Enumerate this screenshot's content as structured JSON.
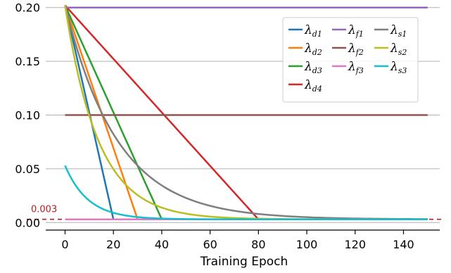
{
  "chart_data": {
    "type": "line",
    "xlabel": "Training Epoch",
    "ylabel": "",
    "xlim": [
      -8,
      155
    ],
    "ylim": [
      -0.007,
      0.207
    ],
    "x_ticks": [
      0,
      20,
      40,
      60,
      80,
      100,
      120,
      140
    ],
    "y_ticks": [
      0.0,
      0.05,
      0.1,
      0.15,
      0.2
    ],
    "y_tick_labels": [
      "0.00",
      "0.05",
      "0.10",
      "0.15",
      "0.20"
    ],
    "grid": "horizontal",
    "legend_position": "top-right",
    "reference_line": {
      "y": 0.003,
      "label": "0.003",
      "color": "#b22222",
      "style": "dashed"
    },
    "series": [
      {
        "name": "λd1",
        "symbol": "λ",
        "sub": "d1",
        "color": "#1f77b4",
        "kind": "linear",
        "y0": 0.202,
        "end_epoch": 20,
        "floor": 0.003
      },
      {
        "name": "λd2",
        "symbol": "λ",
        "sub": "d2",
        "color": "#ff7f0e",
        "kind": "linear",
        "y0": 0.202,
        "end_epoch": 30,
        "floor": 0.003
      },
      {
        "name": "λd3",
        "symbol": "λ",
        "sub": "d3",
        "color": "#2ca02c",
        "kind": "linear",
        "y0": 0.202,
        "end_epoch": 40,
        "floor": 0.003
      },
      {
        "name": "λd4",
        "symbol": "λ",
        "sub": "d4",
        "color": "#d62728",
        "kind": "linear",
        "y0": 0.202,
        "end_epoch": 80,
        "floor": 0.003
      },
      {
        "name": "λf1",
        "symbol": "λ",
        "sub": "f1",
        "color": "#9467bd",
        "kind": "constant",
        "value": 0.2
      },
      {
        "name": "λf2",
        "symbol": "λ",
        "sub": "f2",
        "color": "#8c564b",
        "kind": "constant",
        "value": 0.1
      },
      {
        "name": "λf3",
        "symbol": "λ",
        "sub": "f3",
        "color": "#e377c2",
        "kind": "constant",
        "value": 0.003
      },
      {
        "name": "λs1",
        "symbol": "λ",
        "sub": "s1",
        "color": "#7f7f7f",
        "kind": "exp",
        "y0": 0.202,
        "decay": 0.955,
        "floor": 0.003
      },
      {
        "name": "λs2",
        "symbol": "λ",
        "sub": "s2",
        "color": "#bcbd22",
        "kind": "exp",
        "y0": 0.202,
        "decay": 0.93,
        "floor": 0.003
      },
      {
        "name": "λs3",
        "symbol": "λ",
        "sub": "s3",
        "color": "#17becf",
        "kind": "exp",
        "y0": 0.053,
        "decay": 0.9,
        "floor": 0.003
      }
    ],
    "x_end": 150
  }
}
